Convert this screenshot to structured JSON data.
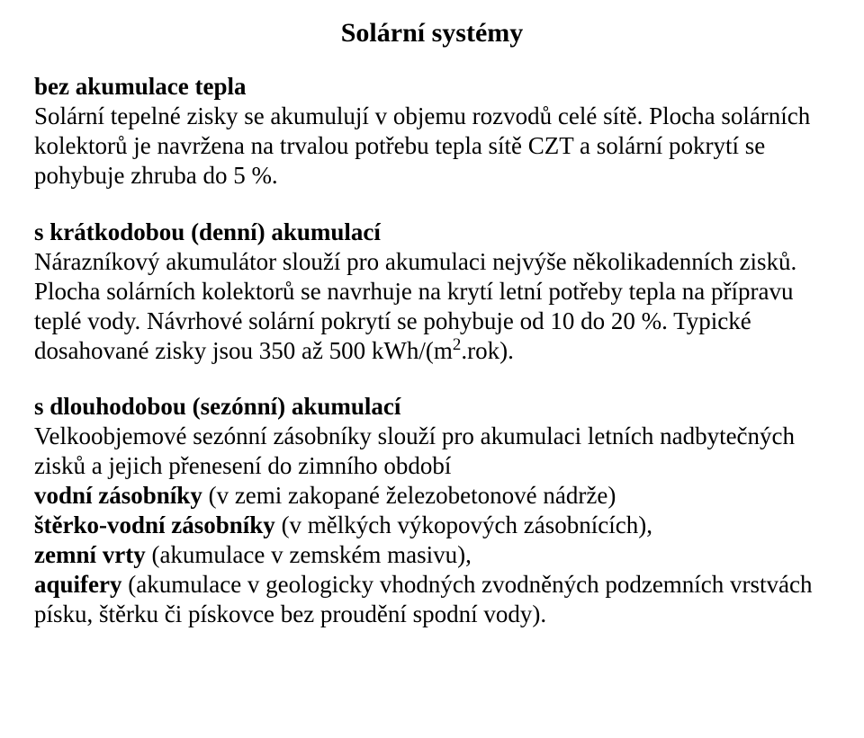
{
  "title": "Solární systémy",
  "section1": {
    "heading": "bez akumulace tepla",
    "body": "Solární tepelné zisky se akumulují v objemu rozvodů celé sítě. Plocha solárních kolektorů je navržena na trvalou potřebu tepla sítě CZT a solární pokrytí se pohybuje zhruba do 5 %."
  },
  "section2": {
    "heading": "s krátkodobou (denní) akumulací",
    "body_a": "Nárazníkový akumulátor slouží pro akumulaci nejvýše několikadenních zisků. Plocha solárních kolektorů se navrhuje na krytí letní potřeby tepla na přípravu teplé vody. Návrhové solární pokrytí se pohybuje od 10 do 20 %. Typické dosahované zisky jsou 350 až 500 kWh/(m",
    "sup": "2",
    "body_b": ".rok)."
  },
  "section3": {
    "heading": "s dlouhodobou (sezónní) akumulací",
    "intro": "Velkoobjemové sezónní zásobníky slouží pro akumulaci letních nadbytečných zisků a jejich přenesení do zimního období",
    "items": {
      "i1b": "vodní zásobníky",
      "i1": " (v zemi zakopané železobetonové nádrže)",
      "i2b": "štěrko-vodní zásobníky",
      "i2": " (v mělkých  výkopových zásobnících),",
      "i3b": "zemní vrty",
      "i3": " (akumulace v zemském masivu),",
      "i4b": "aquifery",
      "i4": " (akumulace v geologicky vhodných zvodněných podzemních vrstvách písku, štěrku či pískovce bez proudění spodní vody)."
    }
  }
}
